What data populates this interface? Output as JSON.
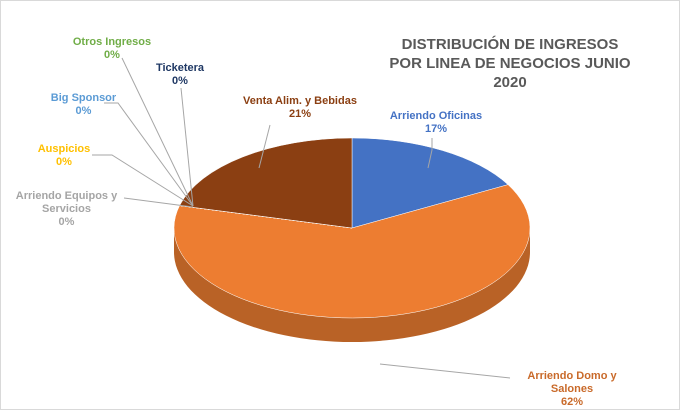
{
  "chart_data": {
    "type": "pie3d",
    "title": "DISTRIBUCIÓN DE INGRESOS POR LINEA DE NEGOCIOS JUNIO 2020",
    "categories": [
      "Arriendo Oficinas",
      "Arriendo Domo y Salones",
      "Arriendo Equipos y Servicios",
      "Auspicios",
      "Big Sponsor",
      "Otros Ingresos",
      "Ticketera",
      "Venta Alim. y Bebidas"
    ],
    "values": [
      17,
      62,
      0,
      0,
      0,
      0,
      0,
      21
    ],
    "value_labels": [
      "17%",
      "62%",
      "0%",
      "0%",
      "0%",
      "0%",
      "0%",
      "21%"
    ],
    "colors": [
      "#4472c4",
      "#ed7d31",
      "#a5a5a5",
      "#ffc000",
      "#5b9bd5",
      "#70ad47",
      "#1f3864",
      "#8b3f12"
    ]
  }
}
